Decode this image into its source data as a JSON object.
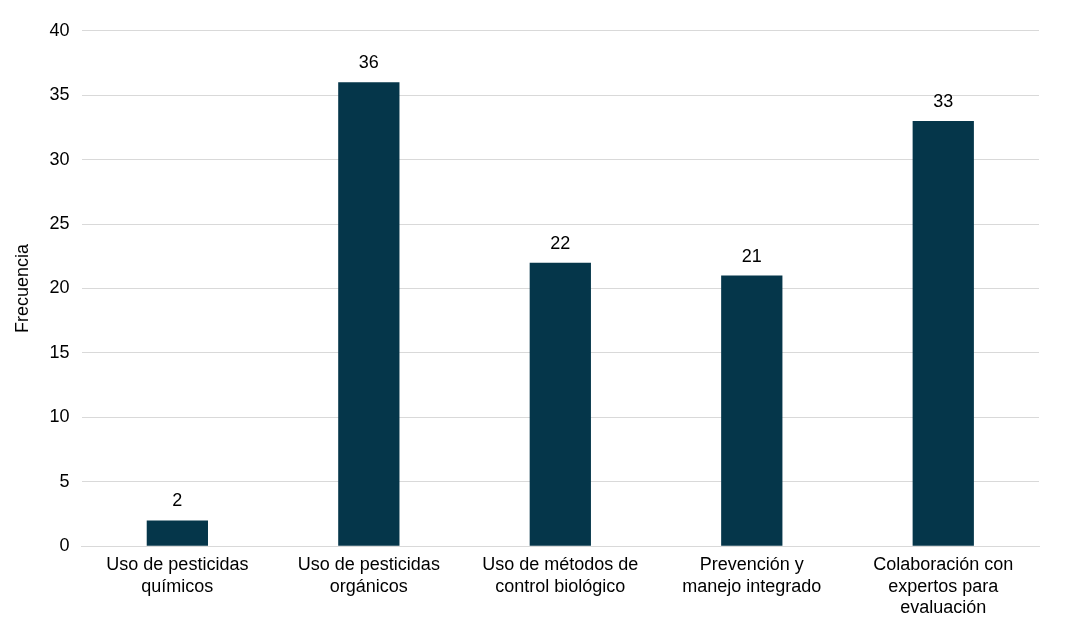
{
  "chart_data": {
    "type": "bar",
    "ylabel": "Frecuencia",
    "categories": [
      "Uso de pesticidas químicos",
      "Uso de pesticidas orgánicos",
      "Uso de métodos de control biológico",
      "Prevención y manejo integrado",
      "Colaboración con expertos para evaluación"
    ],
    "values": [
      2,
      36,
      22,
      21,
      33
    ],
    "color": "#05364a",
    "ylim": [
      0,
      40
    ],
    "yticks": [
      0,
      5,
      10,
      15,
      20,
      25,
      30,
      35,
      40
    ],
    "grid": "y",
    "data_labels": true,
    "legend": false
  }
}
